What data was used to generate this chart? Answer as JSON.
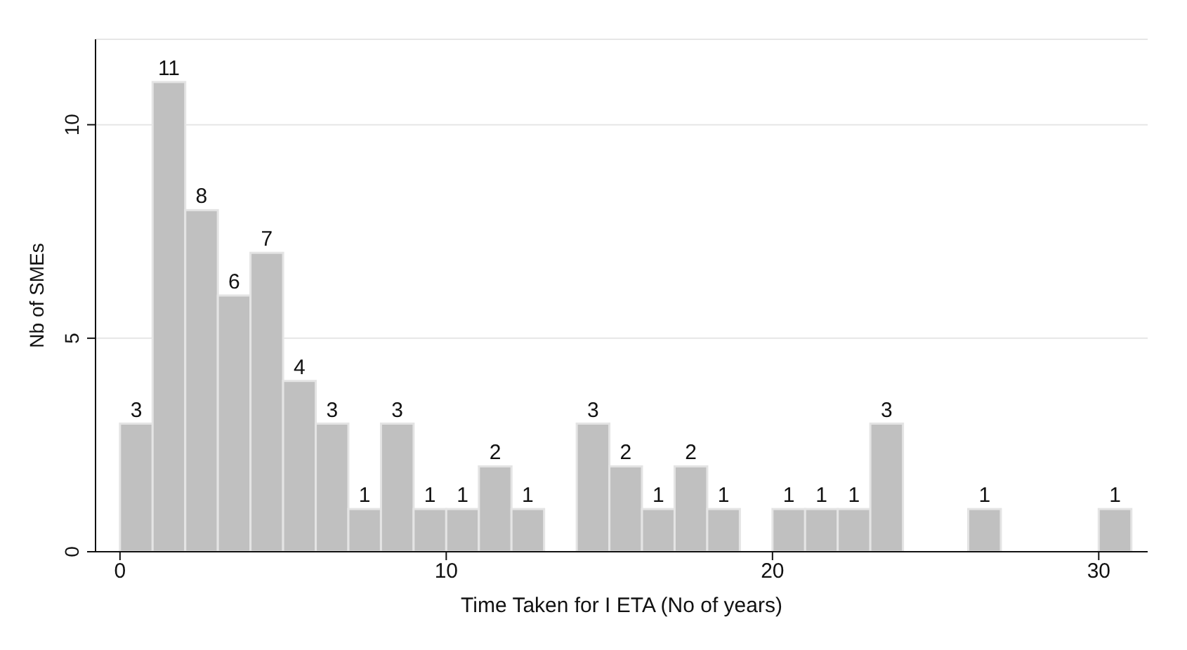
{
  "chart_data": {
    "type": "histogram",
    "xlabel": "Time Taken for I ETA (No of years)",
    "ylabel": "Nb of SMEs",
    "bins": [
      0,
      1,
      2,
      3,
      4,
      5,
      6,
      7,
      8,
      9,
      10,
      11,
      12,
      13,
      14,
      15,
      16,
      17,
      18,
      19,
      20,
      21,
      22,
      23,
      24,
      25,
      26,
      27,
      28,
      29,
      30,
      31
    ],
    "values": [
      3,
      11,
      8,
      6,
      7,
      4,
      3,
      1,
      3,
      1,
      1,
      2,
      1,
      0,
      3,
      2,
      1,
      2,
      1,
      0,
      1,
      1,
      1,
      3,
      0,
      0,
      1,
      0,
      0,
      0,
      1
    ],
    "value_labels": [
      "3",
      "11",
      "8",
      "6",
      "7",
      "4",
      "3",
      "1",
      "3",
      "1",
      "1",
      "2",
      "1",
      null,
      "3",
      "2",
      "1",
      "2",
      "1",
      null,
      "1",
      "1",
      "1",
      "3",
      null,
      null,
      "1",
      null,
      null,
      null,
      "1"
    ],
    "color": "#c0c0c0",
    "xlim": [
      -0.75,
      31.5
    ],
    "xticks": [
      0,
      10,
      20,
      30
    ],
    "ylim": [
      0,
      12
    ],
    "yticks": [
      0,
      5,
      10
    ],
    "grid": "y"
  }
}
